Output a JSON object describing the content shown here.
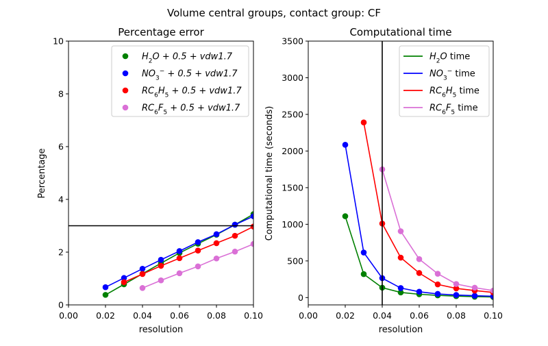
{
  "figure_title": "Volume central groups, contact group: CF",
  "chart_data": [
    {
      "type": "scatter",
      "title": "Percentage error",
      "xlabel": "resolution",
      "ylabel": "Percentage",
      "xlim": [
        0.0,
        0.1
      ],
      "ylim": [
        0,
        10
      ],
      "xticks": [
        "0.00",
        "0.02",
        "0.04",
        "0.06",
        "0.08",
        "0.10"
      ],
      "yticks": [
        "0",
        "2",
        "4",
        "6",
        "8",
        "10"
      ],
      "grid": false,
      "legend_position": "top-right",
      "reference_line": {
        "orientation": "horizontal",
        "y": 3.0,
        "color": "#000000"
      },
      "series": [
        {
          "name": "H2O + 0.5 + vdw1.7",
          "legend": {
            "base": "H",
            "sub": "2",
            "rest": "O + 0.5 + vdw1.7"
          },
          "color": "#008000",
          "x": [
            0.02,
            0.03,
            0.04,
            0.05,
            0.06,
            0.07,
            0.08,
            0.09,
            0.1
          ],
          "y": [
            0.38,
            0.78,
            1.18,
            1.58,
            1.97,
            2.32,
            2.66,
            3.04,
            3.44
          ]
        },
        {
          "name": "NO3⁻ + 0.5 + vdw1.7",
          "legend": {
            "base": "NO",
            "sub": "3",
            "sup": "−",
            "rest": " + 0.5 + vdw1.7"
          },
          "color": "#0000ff",
          "x": [
            0.02,
            0.03,
            0.04,
            0.05,
            0.06,
            0.07,
            0.08,
            0.09,
            0.1
          ],
          "y": [
            0.67,
            1.02,
            1.37,
            1.71,
            2.04,
            2.38,
            2.68,
            3.04,
            3.36
          ]
        },
        {
          "name": "RC6H5 + 0.5 + vdw1.7",
          "legend": {
            "base": "RC",
            "sub": "6",
            "mid": "H",
            "sub2": "5",
            "rest": " + 0.5 + vdw1.7"
          },
          "color": "#ff0000",
          "x": [
            0.03,
            0.04,
            0.05,
            0.06,
            0.07,
            0.08,
            0.09,
            0.1
          ],
          "y": [
            0.86,
            1.17,
            1.48,
            1.77,
            2.06,
            2.34,
            2.62,
            2.97
          ]
        },
        {
          "name": "RC6F5 + 0.5 + vdw1.7",
          "legend": {
            "base": "RC",
            "sub": "6",
            "mid": "F",
            "sub2": "5",
            "rest": " + 0.5 + vdw1.7"
          },
          "color": "#da70d6",
          "x": [
            0.04,
            0.05,
            0.06,
            0.07,
            0.08,
            0.09,
            0.1
          ],
          "y": [
            0.64,
            0.93,
            1.2,
            1.46,
            1.76,
            2.02,
            2.31
          ]
        }
      ]
    },
    {
      "type": "line",
      "title": "Computational time",
      "xlabel": "resolution",
      "ylabel": "Computational time (seconds)",
      "xlim": [
        0.0,
        0.1
      ],
      "ylim": [
        -100,
        3500
      ],
      "xticks": [
        "0.00",
        "0.02",
        "0.04",
        "0.06",
        "0.08",
        "0.10"
      ],
      "yticks": [
        "0",
        "500",
        "1000",
        "1500",
        "2000",
        "2500",
        "3000",
        "3500"
      ],
      "grid": false,
      "legend_position": "top-right",
      "reference_line": {
        "orientation": "vertical",
        "x": 0.04,
        "color": "#000000"
      },
      "series": [
        {
          "name": "H2O time",
          "legend": {
            "base": "H",
            "sub": "2",
            "rest": "O",
            "plain": " time"
          },
          "color": "#008000",
          "x": [
            0.02,
            0.03,
            0.04,
            0.05,
            0.06,
            0.07,
            0.08,
            0.09,
            0.1
          ],
          "y": [
            1110,
            320,
            135,
            70,
            45,
            30,
            20,
            12,
            8
          ]
        },
        {
          "name": "NO3⁻ time",
          "legend": {
            "base": "NO",
            "sub": "3",
            "sup": "−",
            "plain": " time"
          },
          "color": "#0000ff",
          "x": [
            0.02,
            0.03,
            0.04,
            0.05,
            0.06,
            0.07,
            0.08,
            0.09,
            0.1
          ],
          "y": [
            2085,
            615,
            265,
            130,
            80,
            50,
            35,
            25,
            18
          ]
        },
        {
          "name": "RC6H5 time",
          "legend": {
            "base": "RC",
            "sub": "6",
            "mid": "H",
            "sub2": "5",
            "plain": " time"
          },
          "color": "#ff0000",
          "x": [
            0.03,
            0.04,
            0.05,
            0.06,
            0.07,
            0.08,
            0.09,
            0.1
          ],
          "y": [
            2390,
            1010,
            545,
            335,
            180,
            125,
            95,
            70
          ]
        },
        {
          "name": "RC6F5 time",
          "legend": {
            "base": "RC",
            "sub": "6",
            "mid": "F",
            "sub2": "5",
            "plain": " time"
          },
          "color": "#da70d6",
          "x": [
            0.04,
            0.05,
            0.06,
            0.07,
            0.08,
            0.09,
            0.1
          ],
          "y": [
            1750,
            905,
            525,
            325,
            185,
            135,
            95
          ]
        }
      ]
    }
  ]
}
